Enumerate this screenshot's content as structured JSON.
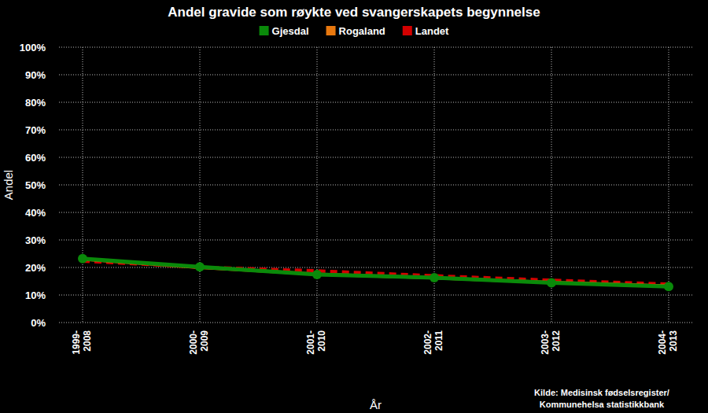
{
  "chart_data": {
    "type": "line",
    "title": "Andel gravide som røykte ved svangerskapets begynnelse",
    "x_label": "År",
    "y_label": "Andel",
    "source": [
      "Kilde: Medisinsk fødselsregister/",
      "Kommunehelsa statistikkbank"
    ],
    "categories": [
      "1999-2008",
      "2000-2009",
      "2001-2010",
      "2002-2011",
      "2003-2012",
      "2004-2013"
    ],
    "series": [
      {
        "name": "Gjesdal",
        "color": "#0a8a0a",
        "line_style": "solid",
        "marker": "circle",
        "values": [
          23.2,
          20.2,
          17.4,
          16.3,
          14.4,
          13.1
        ]
      },
      {
        "name": "Rogaland",
        "color": "#e8780f",
        "line_style": "solid",
        "marker": "none",
        "values": [
          23.0,
          20.0,
          17.6,
          16.2,
          14.6,
          13.3
        ]
      },
      {
        "name": "Landet",
        "color": "#d40000",
        "line_style": "dashed",
        "marker": "none",
        "values": [
          22.3,
          20.1,
          18.8,
          17.0,
          15.4,
          14.0
        ]
      }
    ],
    "ylim": [
      0,
      100
    ],
    "yticks": [
      {
        "value": 0,
        "label": "0%"
      },
      {
        "value": 10,
        "label": "10%"
      },
      {
        "value": 20,
        "label": "20%"
      },
      {
        "value": 30,
        "label": "30%"
      },
      {
        "value": 40,
        "label": "40%"
      },
      {
        "value": 50,
        "label": "50%"
      },
      {
        "value": 60,
        "label": "60%"
      },
      {
        "value": 70,
        "label": "70%"
      },
      {
        "value": 80,
        "label": "80%"
      },
      {
        "value": 90,
        "label": "90%"
      },
      {
        "value": 100,
        "label": "100%"
      }
    ],
    "grid": true,
    "legend": "top"
  }
}
